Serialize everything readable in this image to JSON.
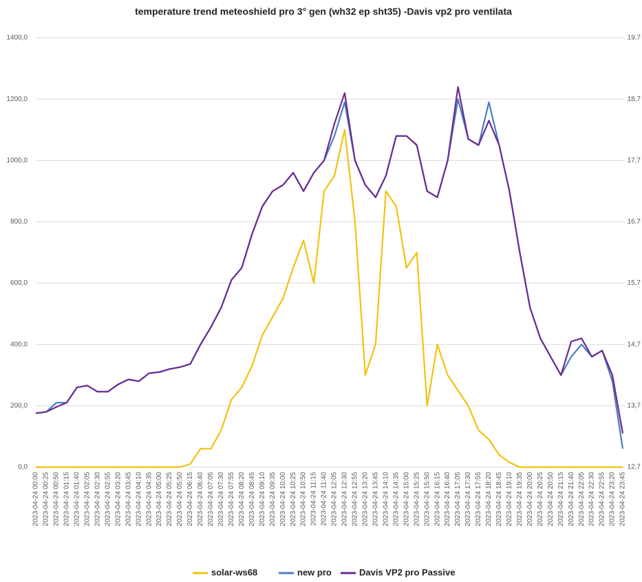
{
  "chart_data": {
    "type": "line",
    "title": "temperature trend meteoshield pro 3° gen (wh32 ep sht35) -Davis vp2 pro ventilata",
    "categories": [
      "2023-04-24 00:00",
      "2023-04-24 00:25",
      "2023-04-24 00:50",
      "2023-04-24 01:15",
      "2023-04-24 01:40",
      "2023-04-24 02:05",
      "2023-04-24 02:30",
      "2023-04-24 02:55",
      "2023-04-24 03:20",
      "2023-04-24 03:45",
      "2023-04-24 04:10",
      "2023-04-24 04:35",
      "2023-04-24 05:00",
      "2023-04-24 05:25",
      "2023-04-24 05:50",
      "2023-04-24 06:15",
      "2023-04-24 06:40",
      "2023-04-24 07:05",
      "2023-04-24 07:30",
      "2023-04-24 07:55",
      "2023-04-24 08:20",
      "2023-04-24 08:45",
      "2023-04-24 09:10",
      "2023-04-24 09:35",
      "2023-04-24 10:00",
      "2023-04-24 10:25",
      "2023-04-24 10:50",
      "2023-04-24 11:15",
      "2023-04-24 11:40",
      "2023-04-24 12:05",
      "2023-04-24 12:30",
      "2023-04-24 12:55",
      "2023-04-24 13:20",
      "2023-04-24 13:45",
      "2023-04-24 14:10",
      "2023-04-24 14:35",
      "2023-04-24 15:00",
      "2023-04-24 15:25",
      "2023-04-24 15:50",
      "2023-04-24 16:15",
      "2023-04-24 16:40",
      "2023-04-24 17:05",
      "2023-04-24 17:30",
      "2023-04-24 17:55",
      "2023-04-24 18:20",
      "2023-04-24 18:45",
      "2023-04-24 19:10",
      "2023-04-24 19:35",
      "2023-04-24 20:00",
      "2023-04-24 20:25",
      "2023-04-24 20:50",
      "2023-04-24 21:15",
      "2023-04-24 21:40",
      "2023-04-24 22:05",
      "2023-04-24 22:30",
      "2023-04-24 22:55",
      "2023-04-24 23:20",
      "2023-04-24 23:45"
    ],
    "series": [
      {
        "name": "solar-ws68",
        "color": "#f2c10f",
        "values": [
          0,
          0,
          0,
          0,
          0,
          0,
          0,
          0,
          0,
          0,
          0,
          0,
          0,
          0,
          0,
          10,
          60,
          60,
          120,
          220,
          260,
          330,
          430,
          490,
          550,
          650,
          740,
          600,
          900,
          950,
          1100,
          800,
          300,
          400,
          900,
          850,
          650,
          700,
          200,
          400,
          300,
          250,
          200,
          120,
          90,
          40,
          15,
          0,
          0,
          0,
          0,
          0,
          0,
          0,
          0,
          0,
          0,
          0
        ]
      },
      {
        "name": "new pro",
        "color": "#4a7ebf",
        "axis": "y2",
        "values": [
          13.58,
          13.6,
          13.75,
          13.75,
          14.0,
          14.03,
          13.93,
          13.93,
          14.05,
          14.13,
          14.1,
          14.23,
          14.25,
          14.3,
          14.33,
          14.38,
          14.7,
          14.98,
          15.3,
          15.75,
          15.95,
          16.5,
          16.95,
          17.2,
          17.3,
          17.5,
          17.2,
          17.5,
          17.7,
          18.1,
          18.65,
          17.7,
          17.3,
          17.1,
          17.45,
          18.1,
          18.1,
          17.95,
          17.2,
          17.1,
          17.7,
          18.7,
          18.05,
          17.95,
          18.65,
          17.95,
          17.2,
          16.2,
          15.3,
          14.8,
          14.5,
          14.2,
          14.5,
          14.7,
          14.5,
          14.6,
          14.1,
          13.0
        ]
      },
      {
        "name": "Davis VP2 pro Passive",
        "color": "#6a2c91",
        "axis": "y2",
        "values": [
          13.58,
          13.6,
          13.68,
          13.75,
          14.0,
          14.03,
          13.93,
          13.93,
          14.05,
          14.13,
          14.1,
          14.23,
          14.25,
          14.3,
          14.33,
          14.38,
          14.7,
          14.98,
          15.3,
          15.75,
          15.95,
          16.5,
          16.95,
          17.2,
          17.3,
          17.5,
          17.2,
          17.5,
          17.7,
          18.3,
          18.8,
          17.7,
          17.3,
          17.1,
          17.45,
          18.1,
          18.1,
          17.95,
          17.2,
          17.1,
          17.7,
          18.9,
          18.05,
          17.95,
          18.35,
          17.95,
          17.2,
          16.2,
          15.3,
          14.8,
          14.5,
          14.2,
          14.75,
          14.8,
          14.5,
          14.6,
          14.2,
          13.25
        ]
      }
    ],
    "ylim": [
      0,
      1400
    ],
    "yticks": [
      {
        "value": 0,
        "label": "0,0"
      },
      {
        "value": 200,
        "label": "200,0"
      },
      {
        "value": 400,
        "label": "400,0"
      },
      {
        "value": 600,
        "label": "600,0"
      },
      {
        "value": 800,
        "label": "800,0"
      },
      {
        "value": 1000,
        "label": "1000,0"
      },
      {
        "value": 1200,
        "label": "1200,0"
      },
      {
        "value": 1400,
        "label": "1400,0"
      }
    ],
    "y2lim": [
      12.7,
      19.7
    ],
    "y2ticks": [
      {
        "value": 12.7,
        "label": "12,7"
      },
      {
        "value": 13.7,
        "label": "13,7"
      },
      {
        "value": 14.7,
        "label": "14,7"
      },
      {
        "value": 15.7,
        "label": "15,7"
      },
      {
        "value": 16.7,
        "label": "16,7"
      },
      {
        "value": 17.7,
        "label": "17,7"
      },
      {
        "value": 18.7,
        "label": "18,7"
      },
      {
        "value": 19.7,
        "label": "19,7"
      }
    ],
    "grid": true,
    "legend": "bottom"
  }
}
